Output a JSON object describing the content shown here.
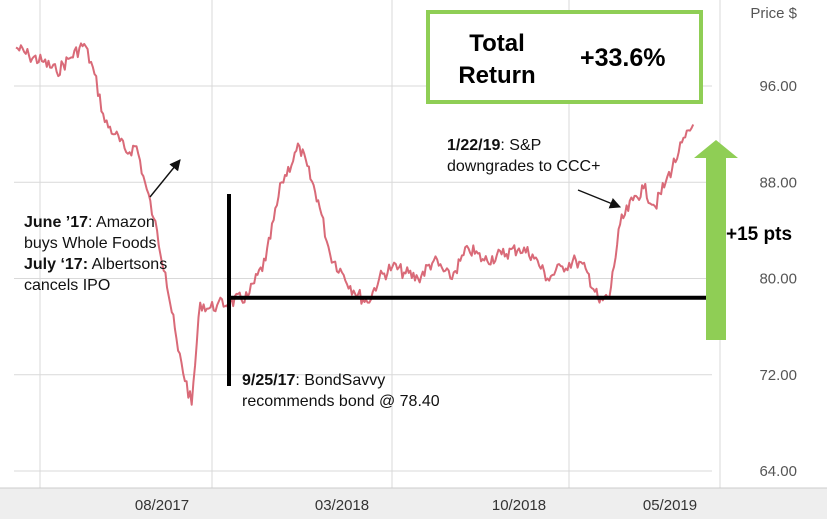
{
  "chart_data": {
    "type": "line",
    "unit_label": "Price $",
    "y_ticks": [
      96,
      88,
      80,
      72,
      64
    ],
    "y_tick_labels": [
      "96.00",
      "88.00",
      "80.00",
      "72.00",
      "64.00"
    ],
    "ylim": [
      63,
      102
    ],
    "x_ticks": [
      "08/2017",
      "03/2018",
      "10/2018",
      "05/2019"
    ],
    "xlim": [
      "2017-01-01",
      "2019-06-01"
    ],
    "grid": true,
    "series": [
      {
        "color": "#d96a78",
        "x": [
          "2017-01-01",
          "2017-01-20",
          "2017-02-10",
          "2017-03-01",
          "2017-03-20",
          "2017-04-10",
          "2017-04-25",
          "2017-05-10",
          "2017-05-25",
          "2017-06-10",
          "2017-06-25",
          "2017-07-05",
          "2017-07-20",
          "2017-08-05",
          "2017-08-20",
          "2017-09-05",
          "2017-09-15",
          "2017-09-25",
          "2017-10-05",
          "2017-10-20",
          "2017-11-10",
          "2017-12-01",
          "2017-12-20",
          "2018-01-10",
          "2018-02-01",
          "2018-02-15",
          "2018-03-01",
          "2018-03-15",
          "2018-04-01",
          "2018-04-15",
          "2018-05-01",
          "2018-05-15",
          "2018-06-01",
          "2018-06-20",
          "2018-07-10",
          "2018-08-01",
          "2018-08-20",
          "2018-09-10",
          "2018-10-01",
          "2018-10-20",
          "2018-11-10",
          "2018-12-01",
          "2018-12-20",
          "2019-01-05",
          "2019-01-22",
          "2019-02-05",
          "2019-02-20",
          "2019-03-10",
          "2019-03-25",
          "2019-04-10",
          "2019-04-25",
          "2019-05-10",
          "2019-05-25"
        ],
        "y": [
          99.2,
          98.5,
          98.0,
          97.2,
          98.3,
          99.5,
          97.0,
          93.0,
          92.0,
          90.5,
          91.0,
          88.5,
          85.0,
          80.5,
          74.0,
          69.5,
          78.0,
          77.5,
          77.8,
          78.0,
          78.5,
          81.5,
          88.0,
          91.0,
          86.5,
          82.0,
          80.5,
          79.0,
          78.0,
          80.0,
          81.0,
          80.5,
          80.0,
          81.5,
          80.0,
          82.5,
          81.5,
          82.0,
          82.5,
          82.0,
          80.0,
          81.0,
          81.5,
          80.5,
          78.0,
          78.5,
          84.5,
          86.5,
          87.5,
          86.0,
          88.0,
          90.5,
          92.8
        ]
      }
    ]
  },
  "reference_line_value": 78.4,
  "return_box": {
    "label": "Total\nReturn",
    "value": "+33.6%"
  },
  "gain_label": "+15 pts",
  "annotations": {
    "june_bold": "June ’17",
    "june_text": ": Amazon",
    "june_text2": "buys Whole Foods",
    "july_bold": "July ‘17:",
    "july_text": " Albertsons",
    "july_text2": "cancels IPO",
    "sep_bold": "9/25/17",
    "sep_text": ": BondSavvy",
    "sep_text2": "recommends bond @ 78.40",
    "jan_bold": "1/22/19",
    "jan_text": ": S&P",
    "jan_text2": "downgrades to CCC+"
  },
  "colors": {
    "line": "#d96a78",
    "box_border": "#8fce55",
    "arrow": "#8fce55",
    "grid": "#d9d9d9"
  }
}
